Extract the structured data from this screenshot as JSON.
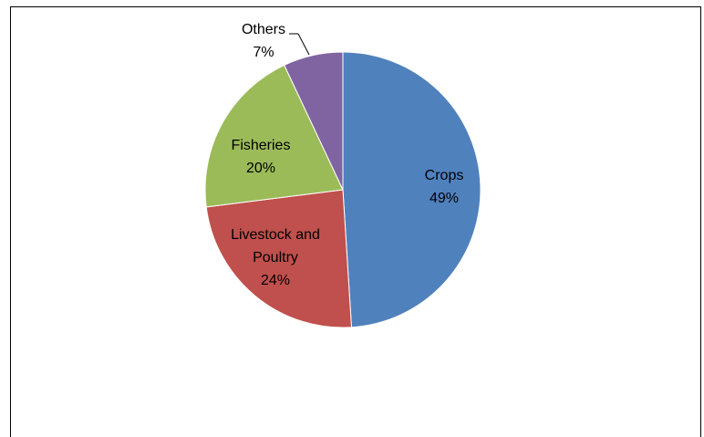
{
  "chart_data": {
    "type": "pie",
    "title": "",
    "slices": [
      {
        "label": "Crops",
        "value": 49,
        "value_label": "49%",
        "color": "#4F81BD"
      },
      {
        "label": "Livestock and Poultry",
        "value": 24,
        "value_label": "24%",
        "color": "#C0504D"
      },
      {
        "label": "Fisheries",
        "value": 20,
        "value_label": "20%",
        "color": "#9BBB59"
      },
      {
        "label": "Others",
        "value": 7,
        "value_label": "7%",
        "color": "#8064A2"
      }
    ],
    "start_angle": "12 o'clock",
    "direction": "clockwise",
    "legend": "none",
    "data_labels": "category name and percentage"
  }
}
